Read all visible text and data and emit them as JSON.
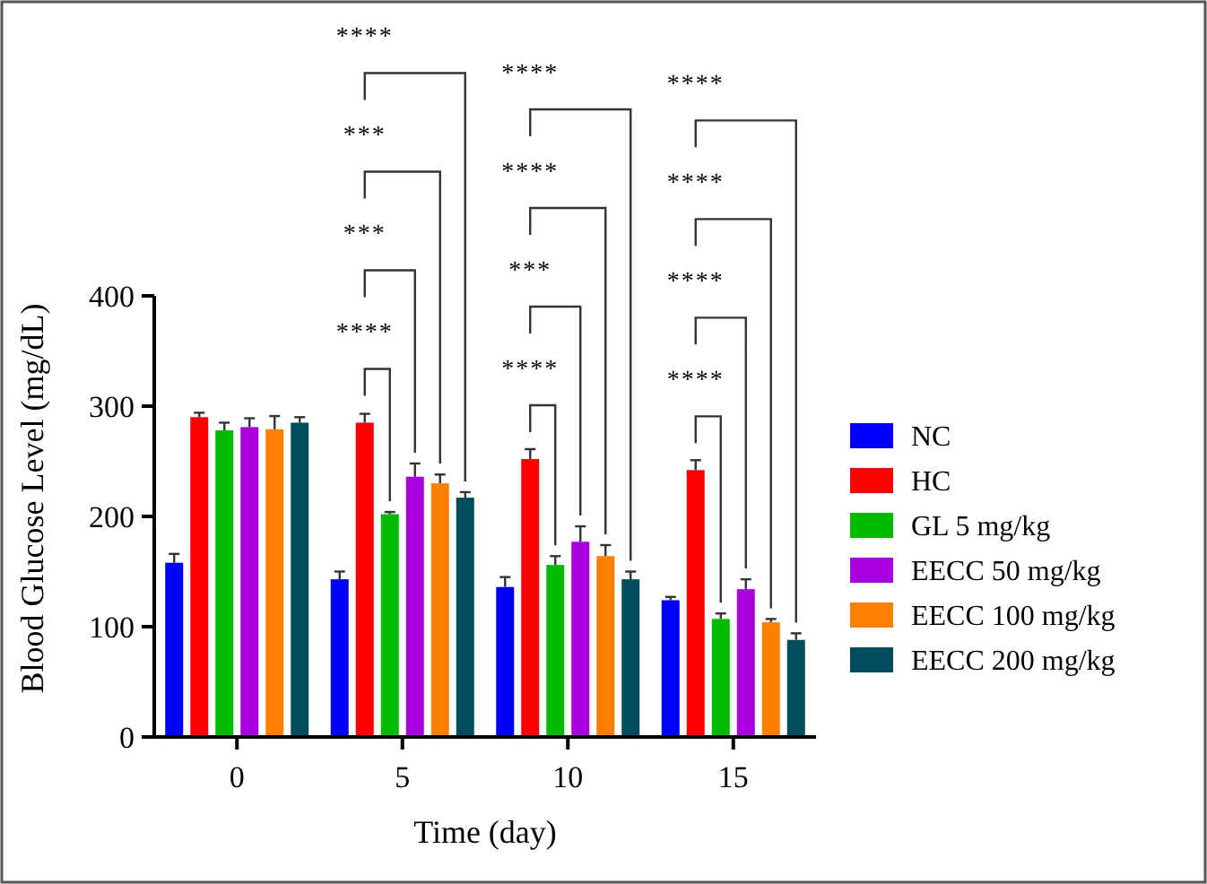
{
  "chart_data": {
    "type": "bar",
    "xlabel": "Time (day)",
    "ylabel": "Blood Glucose Level (mg/dL)",
    "categories": [
      "0",
      "5",
      "10",
      "15"
    ],
    "ylim": [
      0,
      400
    ],
    "yticks": [
      0,
      100,
      200,
      300,
      400
    ],
    "grid": false,
    "legend": "right",
    "series": [
      {
        "name": "NC",
        "color": "#0000ff",
        "values": [
          158,
          143,
          136,
          124
        ],
        "errors": [
          8,
          7,
          9,
          3
        ]
      },
      {
        "name": "HC",
        "color": "#ff0000",
        "values": [
          290,
          285,
          252,
          242
        ],
        "errors": [
          4,
          8,
          9,
          9
        ]
      },
      {
        "name": "GL 5 mg/kg",
        "color": "#00bb00",
        "values": [
          278,
          202,
          156,
          107
        ],
        "errors": [
          7,
          2,
          8,
          5
        ]
      },
      {
        "name": "EECC 50 mg/kg",
        "color": "#aa00dd",
        "values": [
          281,
          236,
          177,
          134
        ],
        "errors": [
          8,
          12,
          14,
          9
        ]
      },
      {
        "name": "EECC 100 mg/kg",
        "color": "#ff8000",
        "values": [
          279,
          230,
          164,
          104
        ],
        "errors": [
          12,
          8,
          10,
          3
        ]
      },
      {
        "name": "EECC 200 mg/kg",
        "color": "#004d60",
        "values": [
          285,
          217,
          143,
          88
        ],
        "errors": [
          5,
          5,
          7,
          6
        ]
      }
    ],
    "annotations": [
      "****",
      "***",
      "***",
      "****",
      "****",
      "***",
      "****",
      "****",
      "****",
      "****",
      "****",
      "****"
    ]
  }
}
